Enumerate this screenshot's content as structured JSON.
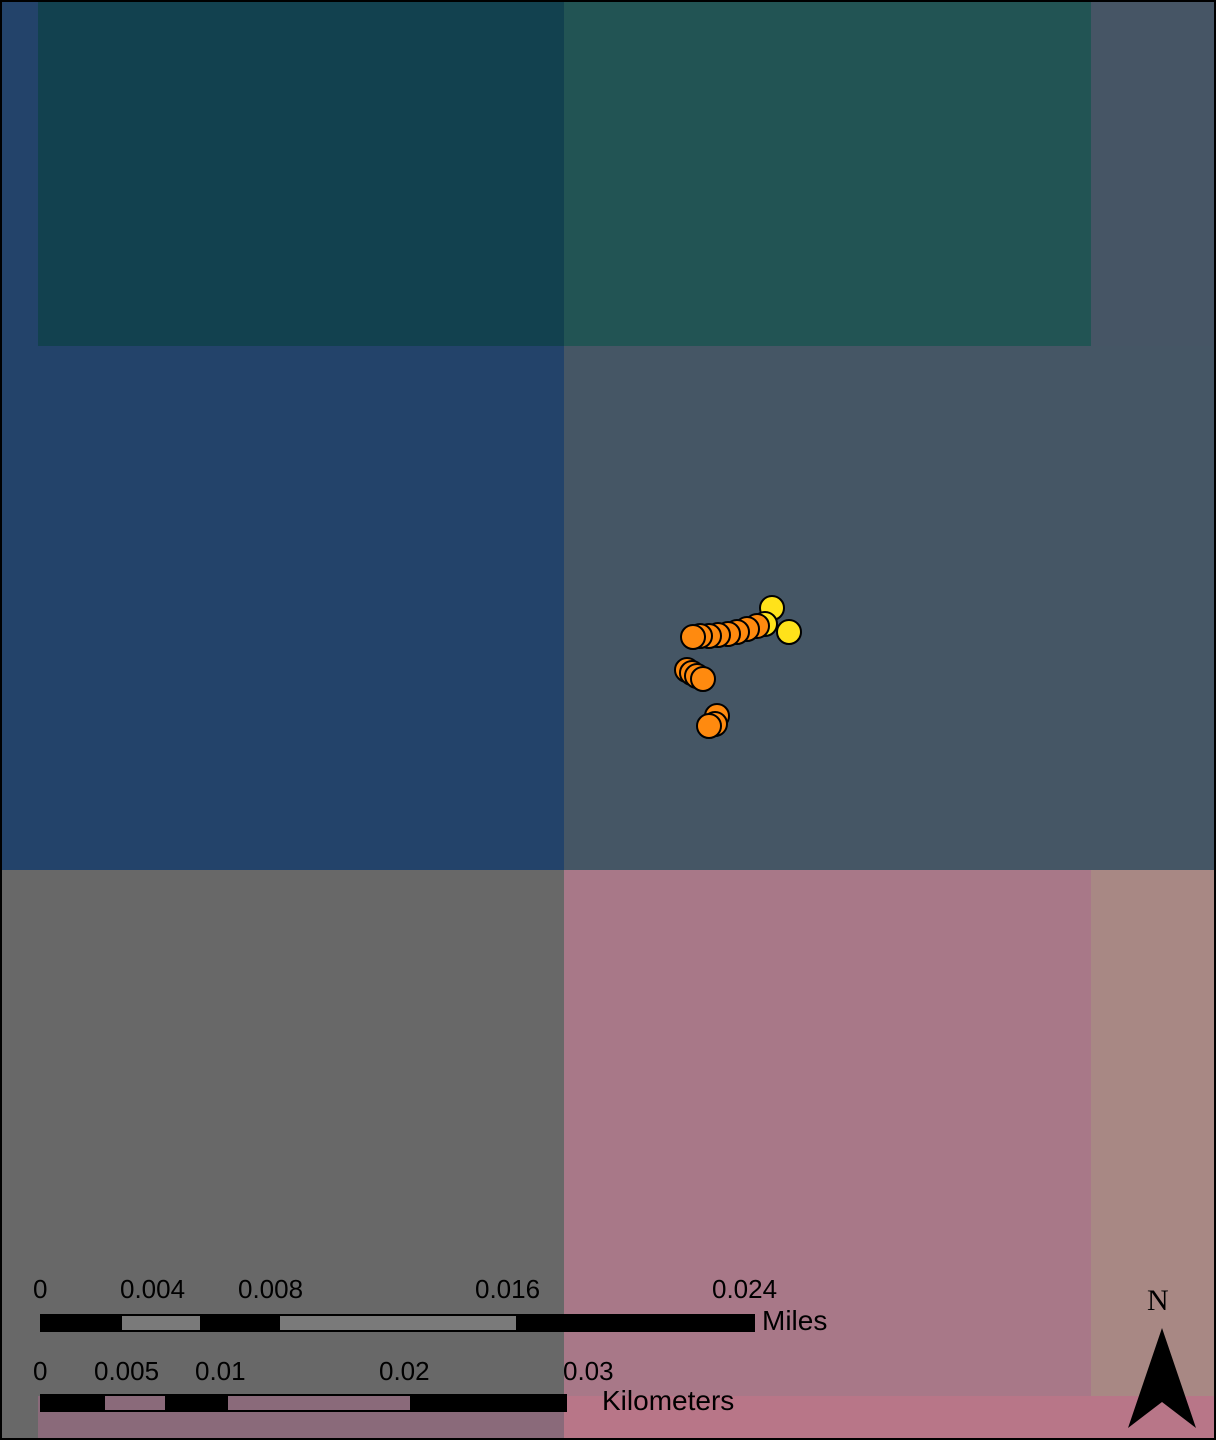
{
  "map": {
    "tiles": [
      {
        "name": "tile-top-left-strip",
        "color": "#23436a"
      },
      {
        "name": "tile-top-left",
        "color": "#12414f"
      },
      {
        "name": "tile-top-right",
        "color": "#225454"
      },
      {
        "name": "tile-top-right-strip",
        "color": "#465565"
      },
      {
        "name": "tile-mid-left",
        "color": "#23436a"
      },
      {
        "name": "tile-mid-right",
        "color": "#455665"
      },
      {
        "name": "tile-bottom-left",
        "color": "#686868"
      },
      {
        "name": "tile-bottom-right",
        "color": "#a87888"
      },
      {
        "name": "tile-bottom-far-right",
        "color": "#a88884"
      },
      {
        "name": "tile-bottom-strip",
        "color": "#b87688"
      }
    ],
    "point_colors": {
      "orange": "#ff8a0f",
      "yellow": "#ffe21a",
      "outline": "#000000"
    }
  },
  "scalebar_miles": {
    "ticks": [
      "0",
      "0.004",
      "0.008",
      "0.016",
      "0.024"
    ],
    "unit": "Miles"
  },
  "scalebar_km": {
    "ticks": [
      "0",
      "0.005",
      "0.01",
      "0.02",
      "0.03"
    ],
    "unit": "Kilometers"
  },
  "north_arrow": {
    "label": "N"
  }
}
